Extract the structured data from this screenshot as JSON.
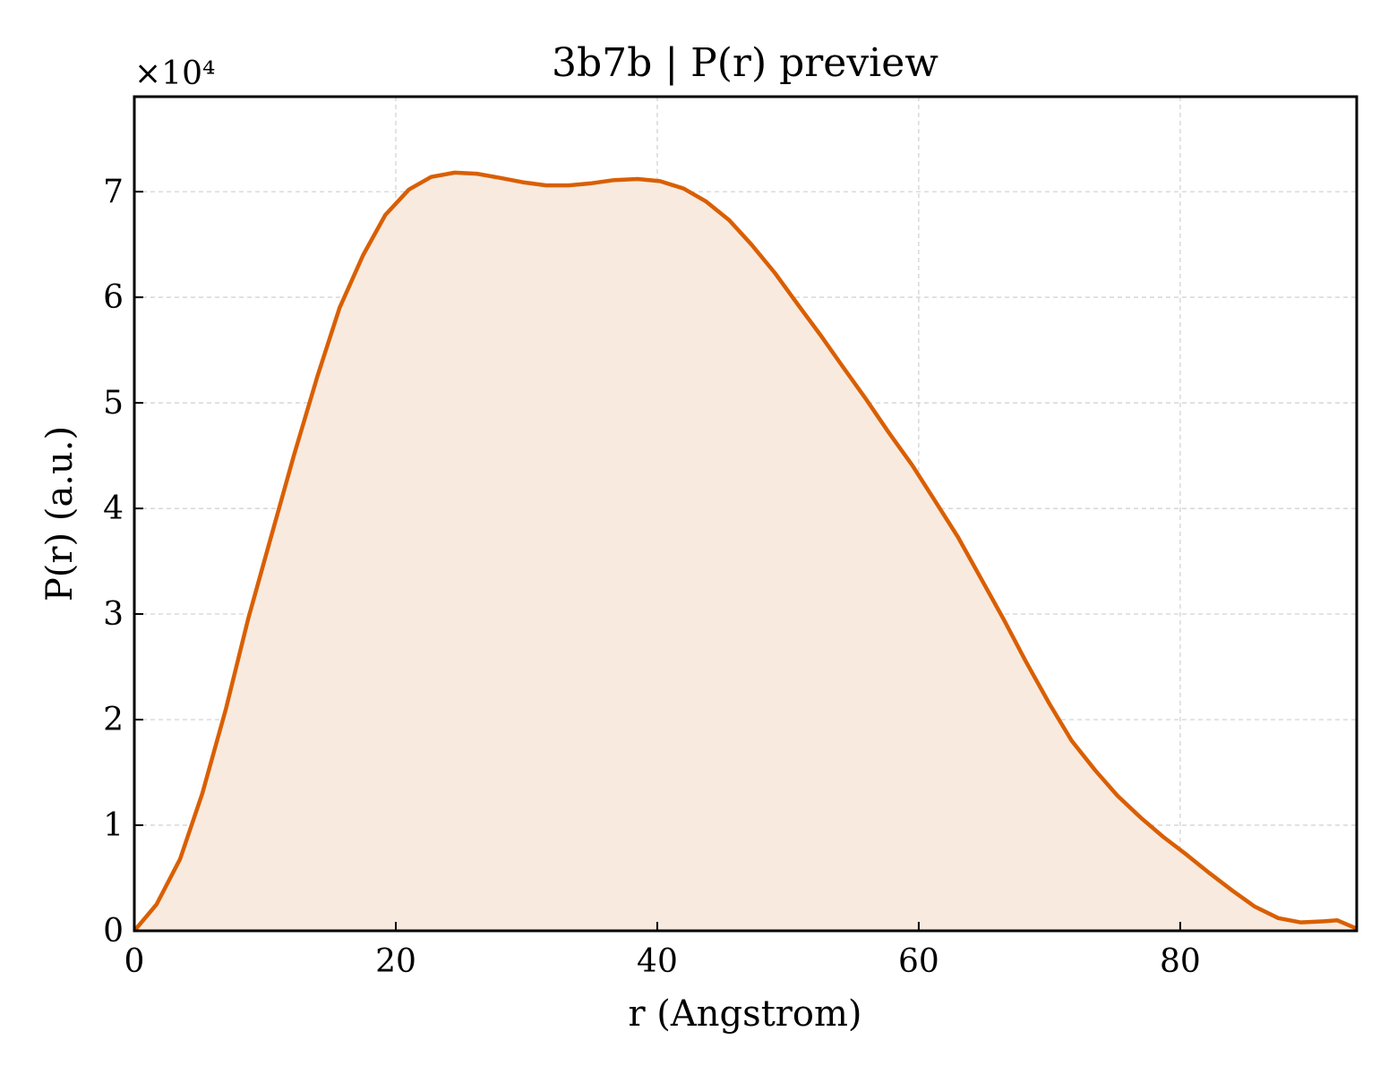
{
  "chart_data": {
    "type": "area",
    "title": "3b7b | P(r) preview",
    "xlabel": "r (Angstrom)",
    "ylabel": "P(r) (a.u.)",
    "y_multiplier_label": "×10⁴",
    "xlim": [
      0,
      93.5
    ],
    "ylim": [
      0,
      79000
    ],
    "x_ticks": [
      0,
      20,
      40,
      60,
      80
    ],
    "y_ticks": [
      0,
      10000,
      20000,
      30000,
      40000,
      50000,
      60000,
      70000
    ],
    "y_tick_labels": [
      "0",
      "1",
      "2",
      "3",
      "4",
      "5",
      "6",
      "7"
    ],
    "grid": true,
    "line_color": "#d95f02",
    "fill_color": "#f9eadf",
    "series": [
      {
        "x": [
          0,
          1.7,
          3.5,
          5.2,
          7.0,
          8.7,
          10.5,
          12.2,
          14.0,
          15.7,
          17.5,
          19.2,
          21.0,
          22.7,
          24.5,
          26.2,
          28.0,
          29.7,
          31.5,
          33.2,
          35.0,
          36.7,
          38.5,
          40.2,
          42.0,
          43.7,
          45.5,
          47.2,
          49.0,
          50.7,
          52.5,
          54.2,
          56.0,
          57.7,
          59.5,
          61.2,
          63.0,
          64.7,
          66.5,
          68.2,
          70.0,
          71.7,
          73.5,
          75.2,
          77.0,
          78.7,
          80.5,
          82.2,
          84.0,
          85.7,
          87.5,
          89.2,
          91.0,
          92.0,
          93.5
        ],
        "values": [
          0,
          2500,
          6800,
          13000,
          21000,
          29500,
          37500,
          45000,
          52500,
          59000,
          64000,
          67800,
          70200,
          71400,
          71800,
          71700,
          71300,
          70900,
          70600,
          70600,
          70800,
          71100,
          71200,
          71000,
          70300,
          69100,
          67300,
          65000,
          62300,
          59400,
          56400,
          53400,
          50300,
          47200,
          44100,
          40800,
          37300,
          33500,
          29500,
          25500,
          21500,
          18000,
          15200,
          12800,
          10700,
          8900,
          7200,
          5500,
          3800,
          2300,
          1200,
          800,
          900,
          1000,
          200
        ]
      }
    ]
  }
}
